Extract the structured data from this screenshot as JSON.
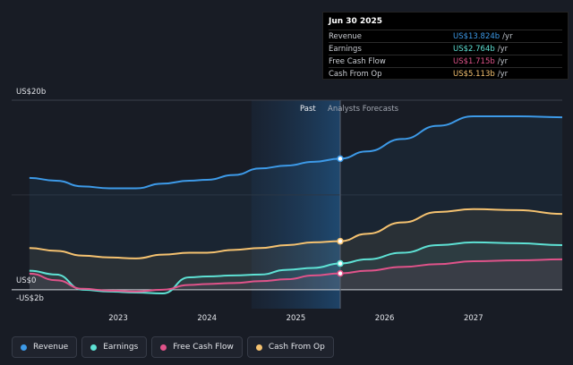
{
  "tooltip": {
    "date": "Jun 30 2025",
    "rows": [
      {
        "label": "Revenue",
        "value": "US$13.824b",
        "unit": "/yr",
        "color": "#3d9ae8"
      },
      {
        "label": "Earnings",
        "value": "US$2.764b",
        "unit": "/yr",
        "color": "#5ee1d4"
      },
      {
        "label": "Free Cash Flow",
        "value": "US$1.715b",
        "unit": "/yr",
        "color": "#e0538a"
      },
      {
        "label": "Cash From Op",
        "value": "US$5.113b",
        "unit": "/yr",
        "color": "#f5c270"
      }
    ]
  },
  "legend": [
    {
      "label": "Revenue",
      "color": "#3d9ae8"
    },
    {
      "label": "Earnings",
      "color": "#5ee1d4"
    },
    {
      "label": "Free Cash Flow",
      "color": "#e0538a"
    },
    {
      "label": "Cash From Op",
      "color": "#f5c270"
    }
  ],
  "labels": {
    "past": "Past",
    "forecast": "Analysts Forecasts"
  },
  "chart_data": {
    "type": "line",
    "title": "",
    "xlabel": "",
    "ylabel": "",
    "y_tick_labels": [
      "US$20b",
      "US$0",
      "-US$2b"
    ],
    "y_ticks": [
      20,
      0,
      -2
    ],
    "x_tick_labels": [
      "2023",
      "2024",
      "2025",
      "2026",
      "2027"
    ],
    "x_ticks": [
      2023,
      2024,
      2025,
      2026,
      2027
    ],
    "xlim": [
      2021.8,
      2028.0
    ],
    "ylim": [
      -2,
      20
    ],
    "past_end": 2025.5,
    "highlight_start": 2024.5,
    "series": [
      {
        "name": "Revenue",
        "color": "#3d9ae8",
        "x": [
          2022.0,
          2022.3,
          2022.6,
          2022.9,
          2023.2,
          2023.5,
          2023.8,
          2024.0,
          2024.3,
          2024.6,
          2024.9,
          2025.2,
          2025.5,
          2025.8,
          2026.2,
          2026.6,
          2027.0,
          2027.5,
          2028.0
        ],
        "y": [
          11.8,
          11.5,
          10.9,
          10.7,
          10.7,
          11.2,
          11.5,
          11.6,
          12.1,
          12.8,
          13.1,
          13.5,
          13.824,
          14.6,
          15.9,
          17.3,
          18.3,
          18.3,
          18.2
        ]
      },
      {
        "name": "Cash From Op",
        "color": "#f5c270",
        "x": [
          2022.0,
          2022.3,
          2022.6,
          2022.9,
          2023.2,
          2023.5,
          2023.8,
          2024.0,
          2024.3,
          2024.6,
          2024.9,
          2025.2,
          2025.5,
          2025.8,
          2026.2,
          2026.6,
          2027.0,
          2027.5,
          2028.0
        ],
        "y": [
          4.4,
          4.1,
          3.6,
          3.4,
          3.3,
          3.7,
          3.9,
          3.9,
          4.2,
          4.4,
          4.7,
          5.0,
          5.113,
          5.9,
          7.1,
          8.2,
          8.5,
          8.4,
          8.0
        ]
      },
      {
        "name": "Earnings",
        "color": "#5ee1d4",
        "x": [
          2022.0,
          2022.3,
          2022.6,
          2022.9,
          2023.2,
          2023.5,
          2023.8,
          2024.0,
          2024.3,
          2024.6,
          2024.9,
          2025.2,
          2025.5,
          2025.8,
          2026.2,
          2026.6,
          2027.0,
          2027.5,
          2028.0
        ],
        "y": [
          2.0,
          1.6,
          0.0,
          -0.2,
          -0.3,
          -0.4,
          1.3,
          1.4,
          1.5,
          1.6,
          2.1,
          2.3,
          2.764,
          3.2,
          3.9,
          4.7,
          5.0,
          4.9,
          4.7
        ]
      },
      {
        "name": "Free Cash Flow",
        "color": "#e0538a",
        "x": [
          2022.0,
          2022.3,
          2022.6,
          2022.9,
          2023.2,
          2023.5,
          2023.8,
          2024.0,
          2024.3,
          2024.6,
          2024.9,
          2025.2,
          2025.5,
          2025.8,
          2026.2,
          2026.6,
          2027.0,
          2027.5,
          2028.0
        ],
        "y": [
          1.7,
          1.0,
          0.1,
          -0.1,
          -0.2,
          0.0,
          0.5,
          0.6,
          0.7,
          0.9,
          1.1,
          1.5,
          1.715,
          2.0,
          2.4,
          2.7,
          3.0,
          3.1,
          3.2
        ]
      }
    ]
  }
}
